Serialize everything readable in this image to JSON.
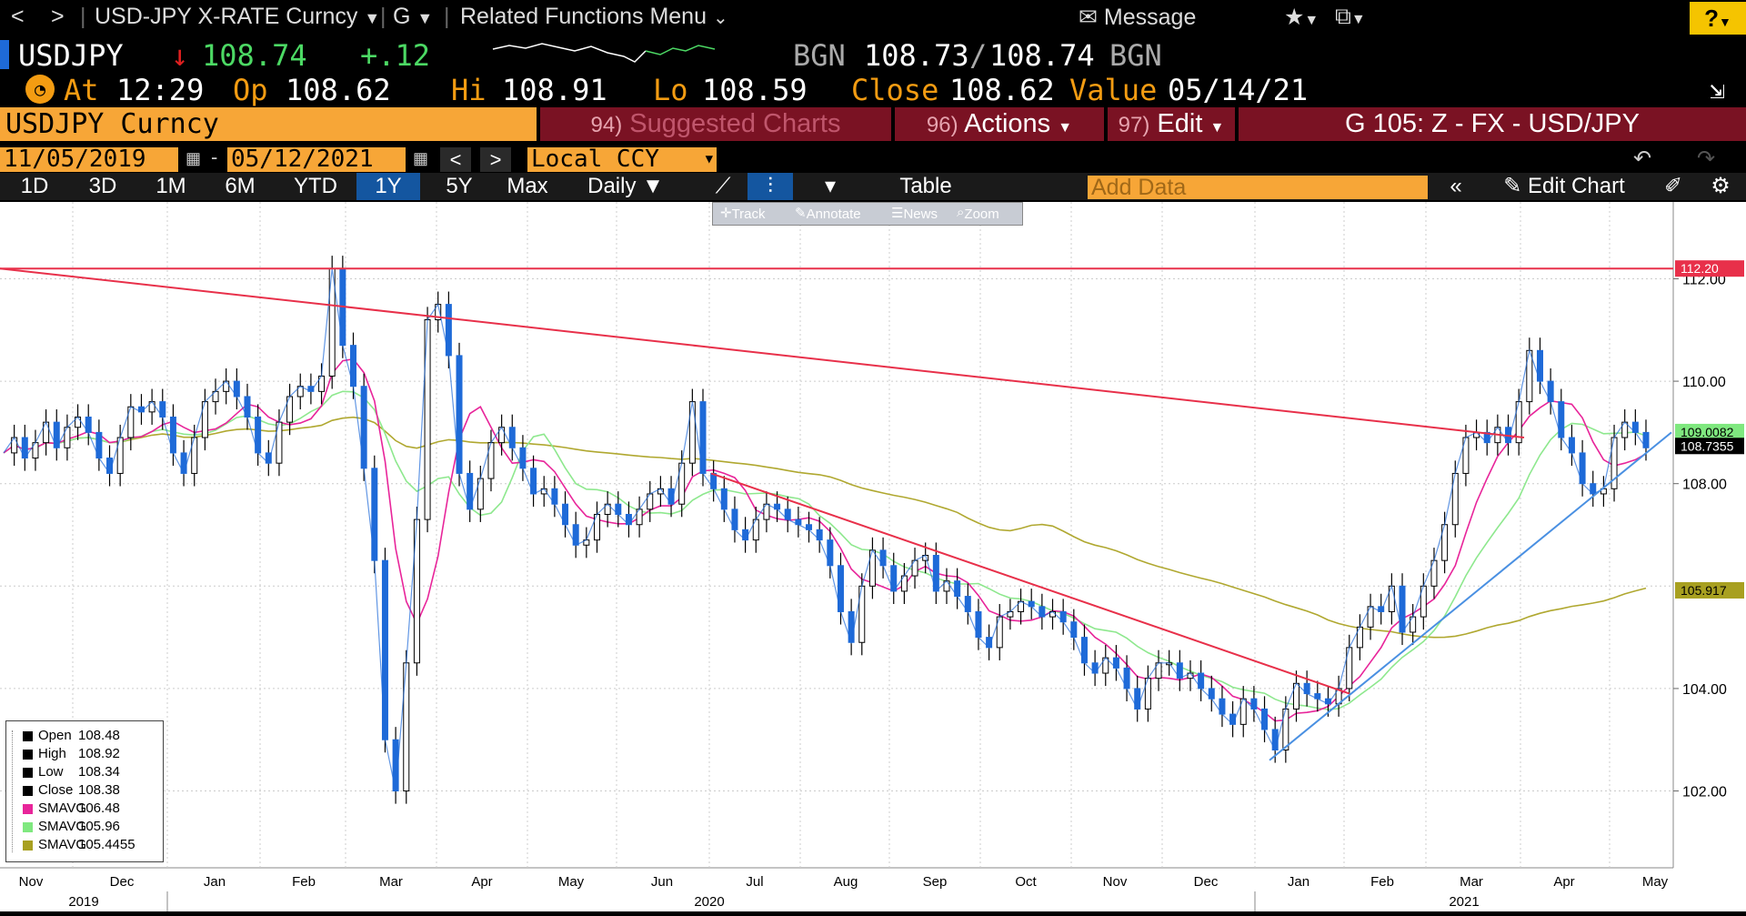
{
  "topbar": {
    "back": "<",
    "forward": ">",
    "security_menu": "USD-JPY X-RATE Curncy",
    "g_menu": "G",
    "related": "Related Functions Menu",
    "message": "Message",
    "help": "?"
  },
  "quote": {
    "ticker": "USDJPY",
    "last": "108.74",
    "change": "+.12",
    "source1": "BGN",
    "bid": "108.73",
    "ask": "108.74",
    "source2": "BGN",
    "at_label": "At",
    "time": "12:29",
    "open_label": "Op",
    "open": "108.62",
    "hi_label": "Hi",
    "hi": "108.91",
    "lo_label": "Lo",
    "lo": "108.59",
    "close_label": "Close",
    "close": "108.62",
    "value_label": "Value",
    "value_date": "05/14/21"
  },
  "actions": {
    "security": "USDJPY Curncy",
    "suggested_num": "94)",
    "suggested": "Suggested Charts",
    "actions_num": "96)",
    "actions": "Actions",
    "edit_num": "97)",
    "edit": "Edit",
    "graph_title": "G 105: Z - FX - USD/JPY"
  },
  "dates": {
    "start": "11/05/2019",
    "end": "05/12/2021",
    "currency": "Local CCY"
  },
  "periods": [
    "1D",
    "3D",
    "1M",
    "6M",
    "YTD",
    "1Y",
    "5Y",
    "Max"
  ],
  "selected_period": "1Y",
  "frequency": "Daily",
  "table_label": "Table",
  "add_data_placeholder": "Add Data",
  "edit_chart": "Edit Chart",
  "float_tools": {
    "track": "Track",
    "annotate": "Annotate",
    "news": "News",
    "zoom": "Zoom"
  },
  "legend": {
    "items": [
      {
        "label": "Open",
        "value": "108.48",
        "color": "#000000"
      },
      {
        "label": "High",
        "value": "108.92",
        "color": "#000000"
      },
      {
        "label": "Low",
        "value": "108.34",
        "color": "#000000"
      },
      {
        "label": "Close",
        "value": "108.38",
        "color": "#000000"
      },
      {
        "label": "SMAVG",
        "value": "106.48",
        "color": "#e8259a"
      },
      {
        "label": "SMAVG",
        "value": "105.96",
        "color": "#7fe87f"
      },
      {
        "label": "SMAVG",
        "value": "105.4455",
        "color": "#a8a020"
      }
    ]
  },
  "chart_data": {
    "type": "line",
    "ylim": [
      100.5,
      113.5
    ],
    "yticks": [
      "112.00",
      "110.00",
      "108.00",
      "104.00",
      "102.00"
    ],
    "ytick_values": [
      112,
      110,
      108,
      104,
      102
    ],
    "xticks": [
      "Nov",
      "Dec",
      "Jan",
      "Feb",
      "Mar",
      "Apr",
      "May",
      "Jun",
      "Jul",
      "Aug",
      "Sep",
      "Oct",
      "Nov",
      "Dec",
      "Jan",
      "Feb",
      "Mar",
      "Apr",
      "May"
    ],
    "years": [
      "2019",
      "2020",
      "2021"
    ],
    "value_labels": [
      {
        "text": "112.20",
        "value": 112.2,
        "color": "#e8304a"
      },
      {
        "text": "109.0082",
        "value": 109.0082,
        "color": "#7fe87f"
      },
      {
        "text": "108.7355",
        "value": 108.7355,
        "color": "#000000"
      },
      {
        "text": "105.917",
        "value": 105.917,
        "color": "#a8a020"
      }
    ],
    "price_series": [
      108.6,
      108.9,
      108.5,
      108.8,
      109.2,
      108.7,
      109.1,
      109.3,
      109.0,
      108.5,
      108.2,
      108.9,
      109.5,
      109.4,
      109.6,
      109.3,
      108.6,
      108.2,
      108.9,
      109.6,
      109.8,
      110.0,
      109.7,
      109.3,
      108.6,
      108.4,
      109.2,
      109.7,
      109.9,
      109.8,
      110.1,
      112.2,
      110.7,
      109.9,
      108.3,
      106.5,
      103.0,
      102.0,
      104.5,
      107.3,
      111.2,
      111.5,
      110.5,
      108.2,
      107.5,
      108.1,
      108.8,
      109.1,
      108.7,
      108.3,
      107.8,
      107.9,
      107.6,
      107.2,
      106.8,
      106.9,
      107.4,
      107.6,
      107.4,
      107.2,
      107.5,
      107.8,
      107.9,
      107.6,
      108.4,
      109.6,
      108.2,
      107.9,
      107.5,
      107.1,
      106.9,
      107.3,
      107.6,
      107.5,
      107.3,
      107.2,
      107.1,
      106.9,
      106.4,
      105.5,
      104.9,
      106.0,
      106.7,
      106.4,
      105.9,
      106.2,
      106.5,
      106.6,
      105.9,
      106.1,
      105.8,
      105.5,
      105.0,
      104.8,
      105.4,
      105.5,
      105.7,
      105.6,
      105.4,
      105.5,
      105.3,
      105.0,
      104.5,
      104.3,
      104.6,
      104.4,
      104.0,
      103.6,
      104.2,
      104.5,
      104.5,
      104.2,
      104.3,
      104.0,
      103.8,
      103.5,
      103.3,
      103.8,
      103.6,
      103.2,
      102.8,
      103.6,
      104.1,
      103.9,
      103.8,
      103.7,
      104.0,
      104.8,
      105.2,
      105.6,
      105.5,
      106.0,
      105.1,
      105.4,
      106.0,
      106.5,
      107.2,
      108.2,
      108.9,
      109.0,
      108.8,
      109.1,
      108.8,
      109.6,
      110.6,
      110.0,
      109.6,
      108.9,
      108.6,
      108.0,
      107.8,
      107.9,
      108.9,
      109.2,
      109.0,
      108.7
    ]
  }
}
